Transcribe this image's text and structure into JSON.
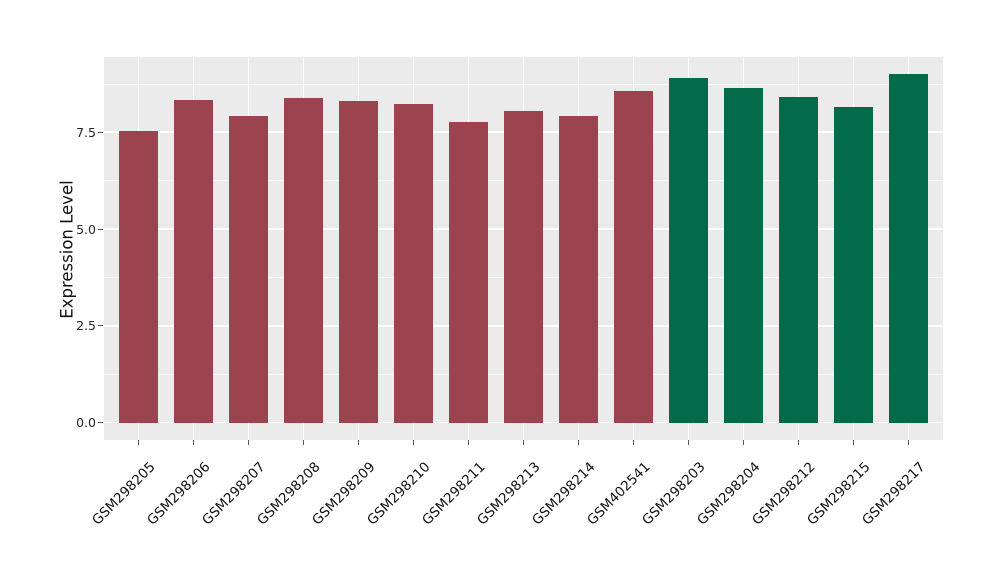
{
  "chart_data": {
    "type": "bar",
    "title": "",
    "ylabel": "Expression Level",
    "xlabel": "",
    "categories": [
      "GSM298205",
      "GSM298206",
      "GSM298207",
      "GSM298208",
      "GSM298209",
      "GSM298210",
      "GSM298211",
      "GSM298213",
      "GSM298214",
      "GSM402541",
      "GSM298203",
      "GSM298204",
      "GSM298212",
      "GSM298215",
      "GSM298217"
    ],
    "values": [
      7.55,
      8.34,
      7.93,
      8.38,
      8.31,
      8.23,
      7.78,
      8.05,
      7.93,
      8.57,
      8.92,
      8.64,
      8.41,
      8.15,
      9.01
    ],
    "bar_colors": [
      "#9B4450",
      "#9B4450",
      "#9B4450",
      "#9B4450",
      "#9B4450",
      "#9B4450",
      "#9B4450",
      "#9B4450",
      "#9B4450",
      "#9B4450",
      "#046B4A",
      "#046B4A",
      "#046B4A",
      "#046B4A",
      "#046B4A"
    ],
    "groups": [
      {
        "name": "group-red",
        "color": "#9B4450",
        "count": 10
      },
      {
        "name": "group-green",
        "color": "#046B4A",
        "count": 5
      }
    ],
    "ytick_labels": [
      "0.0",
      "2.5",
      "5.0",
      "7.5"
    ],
    "ytick_values": [
      0,
      2.5,
      5,
      7.5
    ],
    "minor_tick_values": [
      1.25,
      3.75,
      6.25,
      8.75
    ],
    "ylim": [
      -0.45,
      9.45
    ],
    "bar_label_rotation_deg": 45,
    "legend": "none",
    "grid": "on",
    "panel_bg": "#EBEBEB",
    "grid_color": "#FFFFFF",
    "tick_color": "#555555"
  }
}
